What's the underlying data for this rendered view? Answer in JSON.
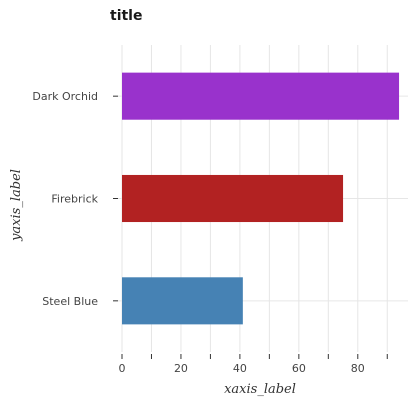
{
  "chart_data": {
    "type": "bar",
    "orientation": "horizontal",
    "title": "title",
    "xlabel": "xaxis_label",
    "ylabel": "yaxis_label",
    "categories": [
      "Steel Blue",
      "Firebrick",
      "Dark Orchid"
    ],
    "values": [
      41,
      75,
      94
    ],
    "colors": [
      "#4682b4",
      "#b22222",
      "#9932cc"
    ],
    "xlim": [
      0,
      95
    ],
    "xticks": [
      0,
      20,
      40,
      60,
      80
    ],
    "xtick_labels": [
      "0",
      "20",
      "40",
      "60",
      "80"
    ],
    "grid": true
  }
}
